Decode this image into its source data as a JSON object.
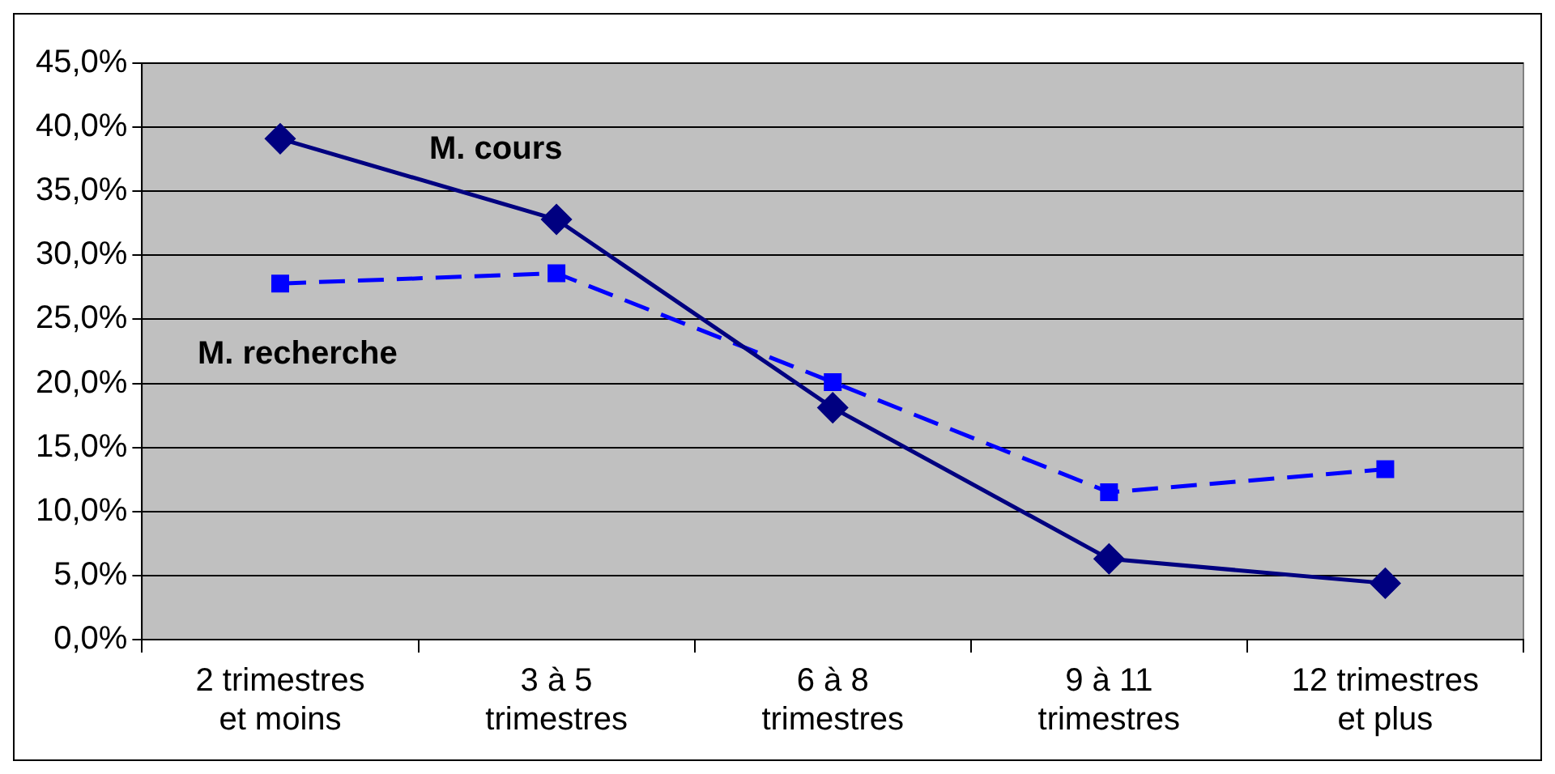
{
  "chart_data": {
    "type": "line",
    "categories": [
      "2 trimestres\net moins",
      "3 à 5\ntrimestres",
      "6 à 8\ntrimestres",
      "9 à 11\ntrimestres",
      "12 trimestres\net plus"
    ],
    "series": [
      {
        "name": "M. cours",
        "color": "#000080",
        "marker": "diamond",
        "line_style": "solid",
        "values": [
          39.1,
          32.8,
          18.1,
          6.3,
          4.4
        ]
      },
      {
        "name": "M. recherche",
        "color": "#0000ff",
        "marker": "square",
        "line_style": "dashed",
        "values": [
          27.8,
          28.6,
          20.1,
          11.5,
          13.3
        ]
      }
    ],
    "ylim": [
      0,
      45
    ],
    "yticks": [
      {
        "value": 0,
        "label": "0,0%"
      },
      {
        "value": 5,
        "label": "5,0%"
      },
      {
        "value": 10,
        "label": "10,0%"
      },
      {
        "value": 15,
        "label": "15,0%"
      },
      {
        "value": 20,
        "label": "20,0%"
      },
      {
        "value": 25,
        "label": "25,0%"
      },
      {
        "value": 30,
        "label": "30,0%"
      },
      {
        "value": 35,
        "label": "35,0%"
      },
      {
        "value": 40,
        "label": "40,0%"
      },
      {
        "value": 45,
        "label": "45,0%"
      }
    ],
    "grid": "y",
    "legend": false
  }
}
